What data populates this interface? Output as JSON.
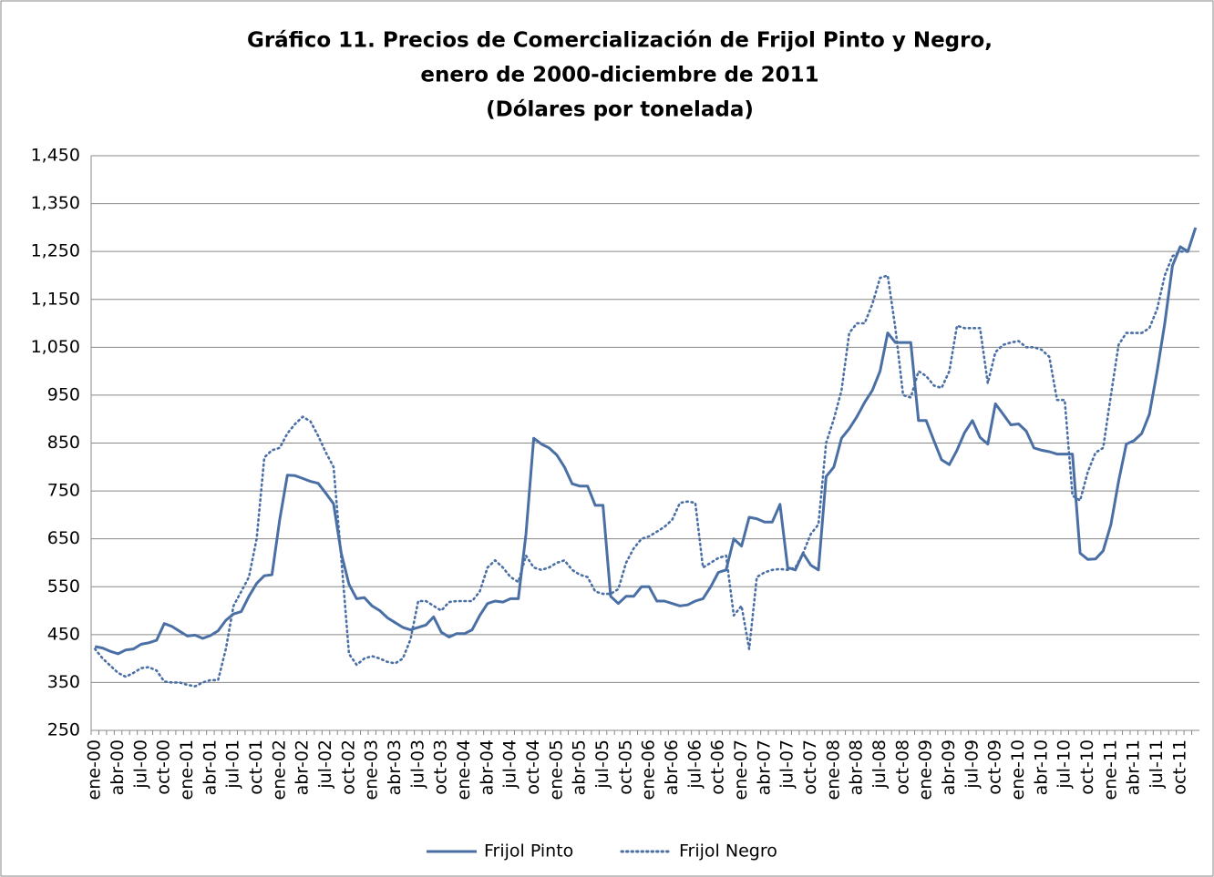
{
  "chart_data": {
    "type": "line",
    "title": [
      "Gráfico 11. Precios de Comercialización de Frijol Pinto y Negro,",
      "enero de 2000-diciembre de 2011",
      "(Dólares por tonelada)"
    ],
    "categories": [
      "ene-00",
      null,
      null,
      "abr-00",
      null,
      null,
      "jul-00",
      null,
      null,
      "oct-00",
      null,
      null,
      "ene-01",
      null,
      null,
      "abr-01",
      null,
      null,
      "jul-01",
      null,
      null,
      "oct-01",
      null,
      null,
      "ene-02",
      null,
      null,
      "abr-02",
      null,
      null,
      "jul-02",
      null,
      null,
      "oct-02",
      null,
      null,
      "ene-03",
      null,
      null,
      "abr-03",
      null,
      null,
      "jul-03",
      null,
      null,
      "oct-03",
      null,
      null,
      "ene-04",
      null,
      null,
      "abr-04",
      null,
      null,
      "jul-04",
      null,
      null,
      "oct-04",
      null,
      null,
      "ene-05",
      null,
      null,
      "abr-05",
      null,
      null,
      "jul-05",
      null,
      null,
      "oct-05",
      null,
      null,
      "ene-06",
      null,
      null,
      "abr-06",
      null,
      null,
      "jul-06",
      null,
      null,
      "oct-06",
      null,
      null,
      "ene-07",
      null,
      null,
      "abr-07",
      null,
      null,
      "jul-07",
      null,
      null,
      "oct-07",
      null,
      null,
      "ene-08",
      null,
      null,
      "abr-08",
      null,
      null,
      "jul-08",
      null,
      null,
      "oct-08",
      null,
      null,
      "ene-09",
      null,
      null,
      "abr-09",
      null,
      null,
      "jul-09",
      null,
      null,
      "oct-09",
      null,
      null,
      "ene-10",
      null,
      null,
      "abr-10",
      null,
      null,
      "jul-10",
      null,
      null,
      "oct-10",
      null,
      null,
      "ene-11",
      null,
      null,
      "abr-11",
      null,
      null,
      "jul-11",
      null,
      null,
      "oct-11",
      null,
      null
    ],
    "series": [
      {
        "name": "Frijol Pinto",
        "color": "#4a6fa5",
        "dash": "solid",
        "values": [
          425,
          422,
          415,
          410,
          418,
          420,
          430,
          433,
          438,
          473,
          467,
          457,
          447,
          449,
          442,
          448,
          458,
          480,
          493,
          498,
          530,
          557,
          573,
          575,
          690,
          783,
          782,
          776,
          770,
          766,
          745,
          723,
          620,
          555,
          525,
          527,
          510,
          500,
          485,
          475,
          465,
          460,
          465,
          470,
          487,
          455,
          445,
          452,
          452,
          460,
          490,
          515,
          520,
          518,
          525,
          525,
          660,
          860,
          848,
          840,
          825,
          800,
          765,
          760,
          760,
          720,
          720,
          530,
          515,
          530,
          530,
          550,
          550,
          520,
          520,
          515,
          510,
          512,
          520,
          525,
          550,
          580,
          585,
          650,
          635,
          695,
          692,
          685,
          685,
          722,
          590,
          585,
          620,
          595,
          585,
          780,
          800,
          860,
          880,
          905,
          935,
          960,
          1000,
          1080,
          1060,
          1060,
          1060,
          897,
          897,
          855,
          815,
          805,
          835,
          872,
          897,
          862,
          848,
          932,
          910,
          888,
          890,
          875,
          840,
          835,
          832,
          827,
          827,
          827,
          620,
          607,
          608,
          625,
          680,
          770,
          848,
          855,
          870,
          910,
          1000,
          1100,
          1220,
          1260,
          1250,
          1300
        ]
      },
      {
        "name": "Frijol Negro",
        "color": "#4a6fa5",
        "dash": "dotted",
        "values": [
          420,
          400,
          385,
          370,
          362,
          370,
          380,
          382,
          375,
          352,
          350,
          350,
          345,
          342,
          350,
          355,
          355,
          420,
          510,
          540,
          570,
          650,
          820,
          835,
          840,
          870,
          890,
          905,
          895,
          865,
          830,
          800,
          610,
          410,
          387,
          400,
          405,
          400,
          393,
          390,
          400,
          440,
          520,
          520,
          510,
          500,
          518,
          520,
          520,
          520,
          540,
          590,
          605,
          590,
          570,
          560,
          615,
          590,
          585,
          590,
          600,
          605,
          585,
          575,
          570,
          540,
          535,
          535,
          545,
          600,
          630,
          650,
          655,
          665,
          675,
          690,
          725,
          728,
          725,
          590,
          600,
          610,
          615,
          490,
          510,
          420,
          570,
          580,
          585,
          587,
          585,
          590,
          620,
          660,
          680,
          850,
          900,
          960,
          1080,
          1100,
          1100,
          1140,
          1195,
          1200,
          1090,
          950,
          945,
          1000,
          990,
          970,
          965,
          1000,
          1095,
          1090,
          1090,
          1090,
          975,
          1040,
          1055,
          1060,
          1063,
          1050,
          1050,
          1045,
          1030,
          940,
          940,
          740,
          730,
          790,
          830,
          840,
          950,
          1055,
          1080,
          1080,
          1080,
          1090,
          1130,
          1200,
          1240,
          1250,
          1250,
          null
        ]
      }
    ],
    "ylim": [
      250,
      1450
    ],
    "yticks": [
      250,
      350,
      450,
      550,
      650,
      750,
      850,
      950,
      {
        "value": 1050,
        "label": "1,050"
      },
      {
        "value": 1150,
        "label": "1,150"
      },
      {
        "value": 1250,
        "label": "1,250"
      },
      {
        "value": 1350,
        "label": "1,350"
      },
      {
        "value": 1450,
        "label": "1,450"
      }
    ],
    "grid": true,
    "legend": "bottom"
  }
}
